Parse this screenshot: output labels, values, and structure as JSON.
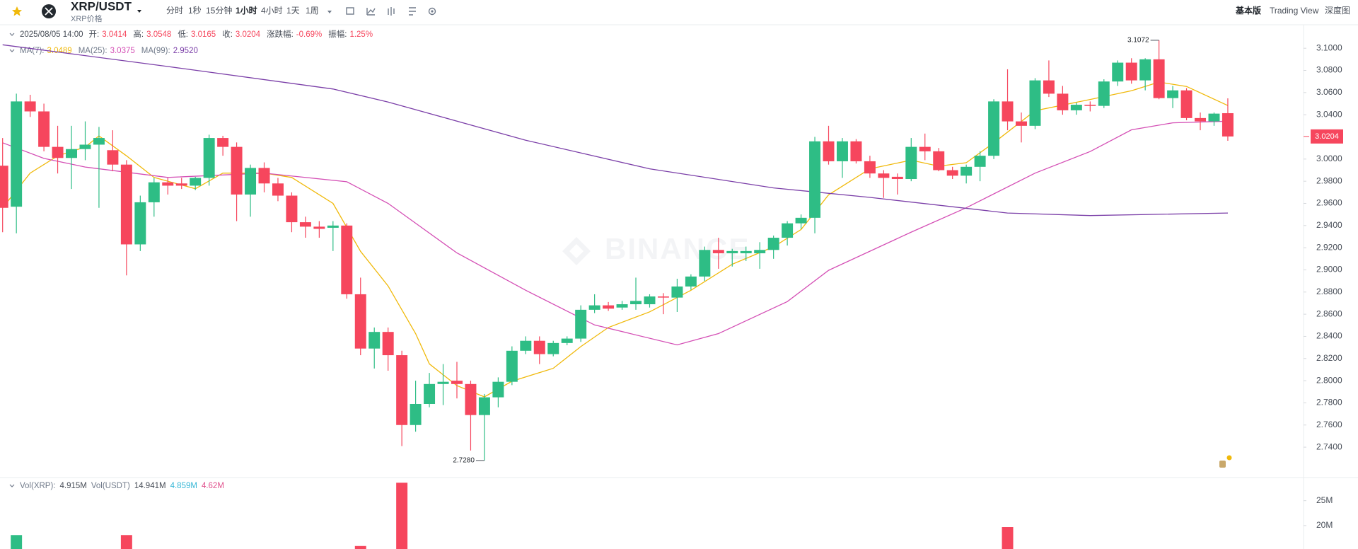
{
  "toolbar": {
    "symbol": "XRP/USDT",
    "subtitle": "XRP价格",
    "intervals": [
      "分时",
      "1秒",
      "15分钟",
      "1小时",
      "4小时",
      "1天",
      "1周"
    ],
    "active": 3,
    "views": [
      "基本版",
      "Trading View",
      "深度图"
    ]
  },
  "chart_data": [
    {
      "type": "candlestick",
      "up_color": "#2ebd85",
      "down_color": "#f6465d",
      "info": {
        "date": "2025/08/05 14:00",
        "items": [
          {
            "label": "开:",
            "value": "3.0414"
          },
          {
            "label": "高:",
            "value": "3.0548"
          },
          {
            "label": "低:",
            "value": "3.0165"
          },
          {
            "label": "收:",
            "value": "3.0204"
          },
          {
            "label": "涨跌幅:",
            "value": "-0.69%"
          },
          {
            "label": "振幅:",
            "value": "1.25%"
          }
        ]
      },
      "xlim": [
        -0.19,
        94.5
      ],
      "ylim": [
        2.7126,
        3.118
      ],
      "yticks": [
        {
          "value": 3.1,
          "label": "3.1000"
        },
        {
          "value": 3.08,
          "label": "3.0800"
        },
        {
          "value": 3.06,
          "label": "3.0600"
        },
        {
          "value": 3.04,
          "label": "3.0400"
        },
        {
          "value": 3.0,
          "label": "3.0000"
        },
        {
          "value": 2.98,
          "label": "2.9800"
        },
        {
          "value": 2.96,
          "label": "2.9600"
        },
        {
          "value": 2.94,
          "label": "2.9400"
        },
        {
          "value": 2.92,
          "label": "2.9200"
        },
        {
          "value": 2.9,
          "label": "2.9000"
        },
        {
          "value": 2.88,
          "label": "2.8800"
        },
        {
          "value": 2.86,
          "label": "2.8600"
        },
        {
          "value": 2.84,
          "label": "2.8400"
        },
        {
          "value": 2.82,
          "label": "2.8200"
        },
        {
          "value": 2.8,
          "label": "2.8000"
        },
        {
          "value": 2.78,
          "label": "2.7800"
        },
        {
          "value": 2.76,
          "label": "2.7600"
        },
        {
          "value": 2.74,
          "label": "2.7400"
        }
      ],
      "open": [
        2.994,
        2.957,
        3.052,
        3.043,
        3.011,
        3.001,
        3.009,
        3.013,
        3.008,
        2.995,
        2.923,
        2.961,
        2.979,
        2.978,
        2.976,
        2.983,
        3.019,
        3.011,
        2.968,
        2.992,
        2.978,
        2.967,
        2.943,
        2.939,
        2.938,
        2.94,
        2.878,
        2.829,
        2.844,
        2.823,
        2.76,
        2.779,
        2.797,
        2.8,
        2.797,
        2.769,
        2.785,
        2.799,
        2.827,
        2.836,
        2.824,
        2.834,
        2.838,
        2.864,
        2.868,
        2.866,
        2.869,
        2.869,
        2.876,
        2.875,
        2.885,
        2.894,
        2.918,
        2.915,
        2.915,
        2.915,
        2.918,
        2.929,
        2.942,
        2.947,
        3.016,
        2.998,
        3.016,
        2.998,
        2.987,
        2.984,
        2.982,
        3.011,
        3.007,
        2.99,
        2.985,
        2.993,
        3.003,
        3.052,
        3.034,
        3.03,
        3.071,
        3.059,
        3.044,
        3.049,
        3.048,
        3.07,
        3.087,
        3.071,
        3.09,
        3.055,
        3.062,
        3.037,
        3.034,
        3.0414
      ],
      "high": [
        3.019,
        3.059,
        3.058,
        3.05,
        3.03,
        3.03,
        3.034,
        3.029,
        3.026,
        2.999,
        2.967,
        2.983,
        2.983,
        2.983,
        2.984,
        3.022,
        3.021,
        3.015,
        2.995,
        2.997,
        2.983,
        2.97,
        2.948,
        2.944,
        2.944,
        2.942,
        2.893,
        2.848,
        2.848,
        2.827,
        2.8,
        2.807,
        2.815,
        2.817,
        2.8,
        2.788,
        2.803,
        2.831,
        2.84,
        2.84,
        2.836,
        2.84,
        2.868,
        2.878,
        2.871,
        2.872,
        2.893,
        2.878,
        2.879,
        2.892,
        2.896,
        2.921,
        2.929,
        2.919,
        2.921,
        2.925,
        2.931,
        2.944,
        2.95,
        3.02,
        3.03,
        3.019,
        3.018,
        3.003,
        2.99,
        2.987,
        3.019,
        3.023,
        3.01,
        2.993,
        2.995,
        3.007,
        3.054,
        3.081,
        3.042,
        3.073,
        3.089,
        3.066,
        3.051,
        3.052,
        3.072,
        3.089,
        3.091,
        3.091,
        3.1072,
        3.066,
        3.064,
        3.042,
        3.042,
        3.0548
      ],
      "low": [
        2.934,
        2.933,
        3.038,
        3.007,
        2.987,
        2.973,
        2.999,
        2.956,
        2.989,
        2.895,
        2.917,
        2.948,
        2.968,
        2.973,
        2.972,
        2.976,
        3.003,
        2.944,
        2.948,
        2.97,
        2.962,
        2.934,
        2.929,
        2.929,
        2.917,
        2.874,
        2.823,
        2.811,
        2.809,
        2.741,
        2.754,
        2.776,
        2.778,
        2.784,
        2.737,
        2.728,
        2.776,
        2.796,
        2.824,
        2.815,
        2.822,
        2.832,
        2.835,
        2.861,
        2.863,
        2.864,
        2.864,
        2.866,
        2.86,
        2.862,
        2.882,
        2.89,
        2.901,
        2.903,
        2.908,
        2.901,
        2.91,
        2.922,
        2.937,
        2.933,
        2.995,
        2.983,
        2.996,
        2.983,
        2.965,
        2.968,
        2.98,
        2.999,
        2.989,
        2.982,
        2.978,
        2.98,
        3.0,
        3.026,
        3.015,
        3.027,
        3.056,
        3.04,
        3.04,
        3.043,
        3.046,
        3.066,
        3.068,
        3.062,
        3.054,
        3.046,
        3.035,
        3.026,
        3.03,
        3.0165
      ],
      "close": [
        2.956,
        3.052,
        3.043,
        3.011,
        3.001,
        3.009,
        3.013,
        3.019,
        2.995,
        2.923,
        2.961,
        2.979,
        2.976,
        2.976,
        2.983,
        3.019,
        3.011,
        2.968,
        2.992,
        2.978,
        2.967,
        2.943,
        2.939,
        2.937,
        2.94,
        2.878,
        2.829,
        2.844,
        2.823,
        2.76,
        2.779,
        2.797,
        2.799,
        2.797,
        2.769,
        2.785,
        2.799,
        2.827,
        2.836,
        2.824,
        2.834,
        2.838,
        2.864,
        2.868,
        2.865,
        2.869,
        2.872,
        2.876,
        2.875,
        2.885,
        2.894,
        2.918,
        2.915,
        2.917,
        2.917,
        2.918,
        2.929,
        2.942,
        2.947,
        3.016,
        2.998,
        3.016,
        2.998,
        2.987,
        2.983,
        2.982,
        3.011,
        3.007,
        2.99,
        2.985,
        2.993,
        3.003,
        3.052,
        3.034,
        3.03,
        3.071,
        3.059,
        3.044,
        3.049,
        3.048,
        3.07,
        3.087,
        3.071,
        3.09,
        3.055,
        3.062,
        3.037,
        3.034,
        3.041,
        3.0204
      ],
      "annotations": [
        {
          "x": 84,
          "value": 3.1072,
          "label": "3.1072"
        },
        {
          "x": 35,
          "value": 2.728,
          "label": "2.7280"
        }
      ],
      "overlays": [
        {
          "name": "MA(7):",
          "value_label": "3.0489",
          "color": "#f0b90b",
          "x": [
            0,
            2,
            4,
            6,
            7,
            9,
            11,
            14,
            16,
            19,
            21,
            24,
            26,
            28,
            30,
            31,
            33,
            35,
            37,
            40,
            42,
            44,
            47,
            50,
            53,
            56,
            58,
            60,
            63,
            66,
            68,
            70,
            72,
            75,
            79,
            82,
            84,
            86,
            89
          ],
          "values": [
            2.956,
            2.9873,
            3.0029,
            3.0108,
            3.0209,
            3.0029,
            2.9834,
            2.9732,
            2.9873,
            2.9873,
            2.9834,
            2.96,
            2.9168,
            2.8855,
            2.8425,
            2.8151,
            2.7955,
            2.7854,
            2.7995,
            2.8112,
            2.8308,
            2.848,
            2.8621,
            2.8816,
            2.9051,
            2.9208,
            2.9364,
            2.9677,
            2.9912,
            2.999,
            2.9936,
            2.9967,
            3.0147,
            3.0436,
            3.0538,
            3.0616,
            3.0695,
            3.0655,
            3.0483
          ]
        },
        {
          "name": "MA(25):",
          "value_label": "3.0375",
          "color": "#d44fb5",
          "x": [
            0,
            3,
            6,
            12,
            19,
            25,
            28,
            33,
            38,
            43,
            49,
            52,
            57,
            60,
            66,
            70,
            75,
            79,
            82,
            85,
            89
          ],
          "values": [
            3.0147,
            3.0006,
            2.9928,
            2.9834,
            2.9873,
            2.9795,
            2.96,
            2.9153,
            2.8816,
            2.8503,
            2.8323,
            2.8425,
            2.8714,
            2.8996,
            2.9341,
            2.956,
            2.9873,
            3.0068,
            3.0264,
            3.0327,
            3.0342
          ]
        },
        {
          "name": "MA(99):",
          "value_label": "2.9520",
          "color": "#7b3fa8",
          "x": [
            0,
            12,
            24,
            28,
            38,
            47,
            56,
            63,
            73,
            79,
            89
          ],
          "values": [
            3.1031,
            3.0835,
            3.0632,
            3.0515,
            3.017,
            2.9912,
            2.974,
            2.9654,
            2.9513,
            2.949,
            2.9513
          ]
        }
      ]
    },
    {
      "type": "bar",
      "legend": [
        {
          "text": "Vol(XRP):",
          "color": "#707a8a"
        },
        {
          "text": "4.915M",
          "color": "#474d57"
        },
        {
          "text": "Vol(USDT)",
          "color": "#707a8a"
        },
        {
          "text": "14.941M",
          "color": "#474d57"
        },
        {
          "text": "4.859M",
          "color": "#37b7d6"
        },
        {
          "text": "4.62M",
          "color": "#e0508c"
        }
      ],
      "xlim": [
        -0.19,
        94.5
      ],
      "ylim": [
        15.3,
        29.5
      ],
      "yticks": [
        {
          "value": 25,
          "label": "25M"
        },
        {
          "value": 20,
          "label": "20M"
        }
      ],
      "x": [
        1,
        9,
        26,
        29,
        73
      ],
      "values": [
        18.1,
        18.1,
        15.9,
        28.6,
        19.7
      ]
    }
  ],
  "watermark": "BINANCE"
}
